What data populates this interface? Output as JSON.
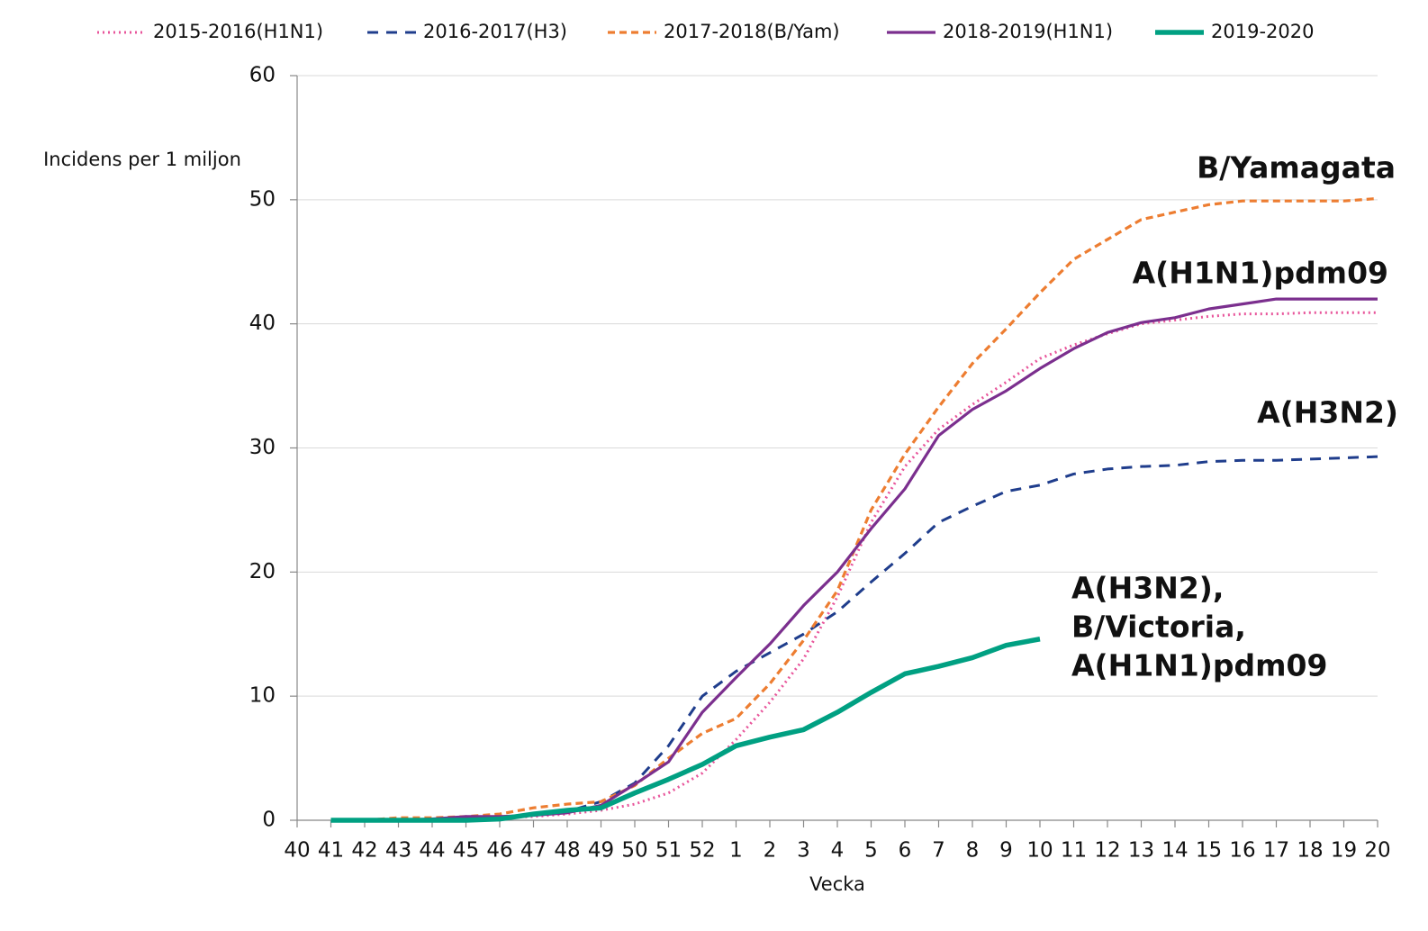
{
  "chart_data": {
    "type": "line",
    "y_label": "Incidens per 1 miljon",
    "x_label": "Vecka",
    "categories": [
      "40",
      "41",
      "42",
      "43",
      "44",
      "45",
      "46",
      "47",
      "48",
      "49",
      "50",
      "51",
      "52",
      "1",
      "2",
      "3",
      "4",
      "5",
      "6",
      "7",
      "8",
      "9",
      "10",
      "11",
      "12",
      "13",
      "14",
      "15",
      "16",
      "17",
      "18",
      "19",
      "20"
    ],
    "ylim": [
      0,
      60
    ],
    "yticks": [
      0,
      10,
      20,
      30,
      40,
      50,
      60
    ],
    "grid": true,
    "legend": "top",
    "series": [
      {
        "name": "2015-2016(H1N1)",
        "color": "#e8559b",
        "line_style": "dotted",
        "values": [
          null,
          0,
          0,
          0,
          0.1,
          0.1,
          0.2,
          0.3,
          0.5,
          0.8,
          1.3,
          2.2,
          3.8,
          6.5,
          9.5,
          13,
          18,
          24,
          28.5,
          31.5,
          33.5,
          35.3,
          37.2,
          38.3,
          39.2,
          40,
          40.3,
          40.6,
          40.8,
          40.8,
          40.9,
          40.9,
          40.9
        ]
      },
      {
        "name": "2016-2017(H3)",
        "color": "#1f3d8c",
        "line_style": "dashed",
        "values": [
          null,
          0,
          0,
          0,
          0.1,
          0.1,
          0.2,
          0.4,
          0.7,
          1.5,
          3,
          6,
          10,
          12,
          13.5,
          15,
          16.8,
          19.2,
          21.5,
          24,
          25.3,
          26.5,
          27,
          27.9,
          28.3,
          28.5,
          28.6,
          28.9,
          29,
          29,
          29.1,
          29.2,
          29.3
        ]
      },
      {
        "name": "2017-2018(B/Yam)",
        "color": "#ed7d31",
        "line_style": "short-dashed",
        "values": [
          null,
          0,
          0,
          0.2,
          0.2,
          0.3,
          0.5,
          1,
          1.3,
          1.5,
          2.8,
          5,
          7,
          8.2,
          11,
          14.5,
          18.5,
          25,
          29.5,
          33.3,
          36.8,
          39.6,
          42.5,
          45.2,
          46.8,
          48.4,
          49,
          49.6,
          49.9,
          49.9,
          49.9,
          49.9,
          50.1
        ]
      },
      {
        "name": "2018-2019(H1N1)",
        "color": "#7b2f8e",
        "line_style": "solid",
        "values": [
          null,
          0,
          0,
          0,
          0.1,
          0.3,
          0.3,
          0.4,
          0.6,
          1.2,
          2.9,
          4.7,
          8.7,
          11.5,
          14.2,
          17.3,
          20,
          23.5,
          26.7,
          31,
          33.1,
          34.6,
          36.4,
          38,
          39.3,
          40.1,
          40.5,
          41.2,
          41.6,
          42,
          42,
          42,
          42
        ]
      },
      {
        "name": "2019-2020",
        "color": "#00a082",
        "line_style": "bold",
        "values": [
          null,
          0,
          0,
          0,
          0,
          0,
          0.1,
          0.5,
          0.8,
          1,
          2.2,
          3.3,
          4.5,
          6,
          6.7,
          7.3,
          8.7,
          10.3,
          11.8,
          12.4,
          13.1,
          14.1,
          14.6,
          null,
          null,
          null,
          null,
          null,
          null,
          null,
          null,
          null,
          null
        ]
      }
    ],
    "annotations": [
      {
        "lines": [
          "B/Yamagata"
        ]
      },
      {
        "lines": [
          "A(H1N1)pdm09"
        ]
      },
      {
        "lines": [
          "A(H3N2)"
        ]
      },
      {
        "lines": [
          "A(H3N2),",
          "B/Victoria,",
          "A(H1N1)pdm09"
        ]
      }
    ]
  }
}
